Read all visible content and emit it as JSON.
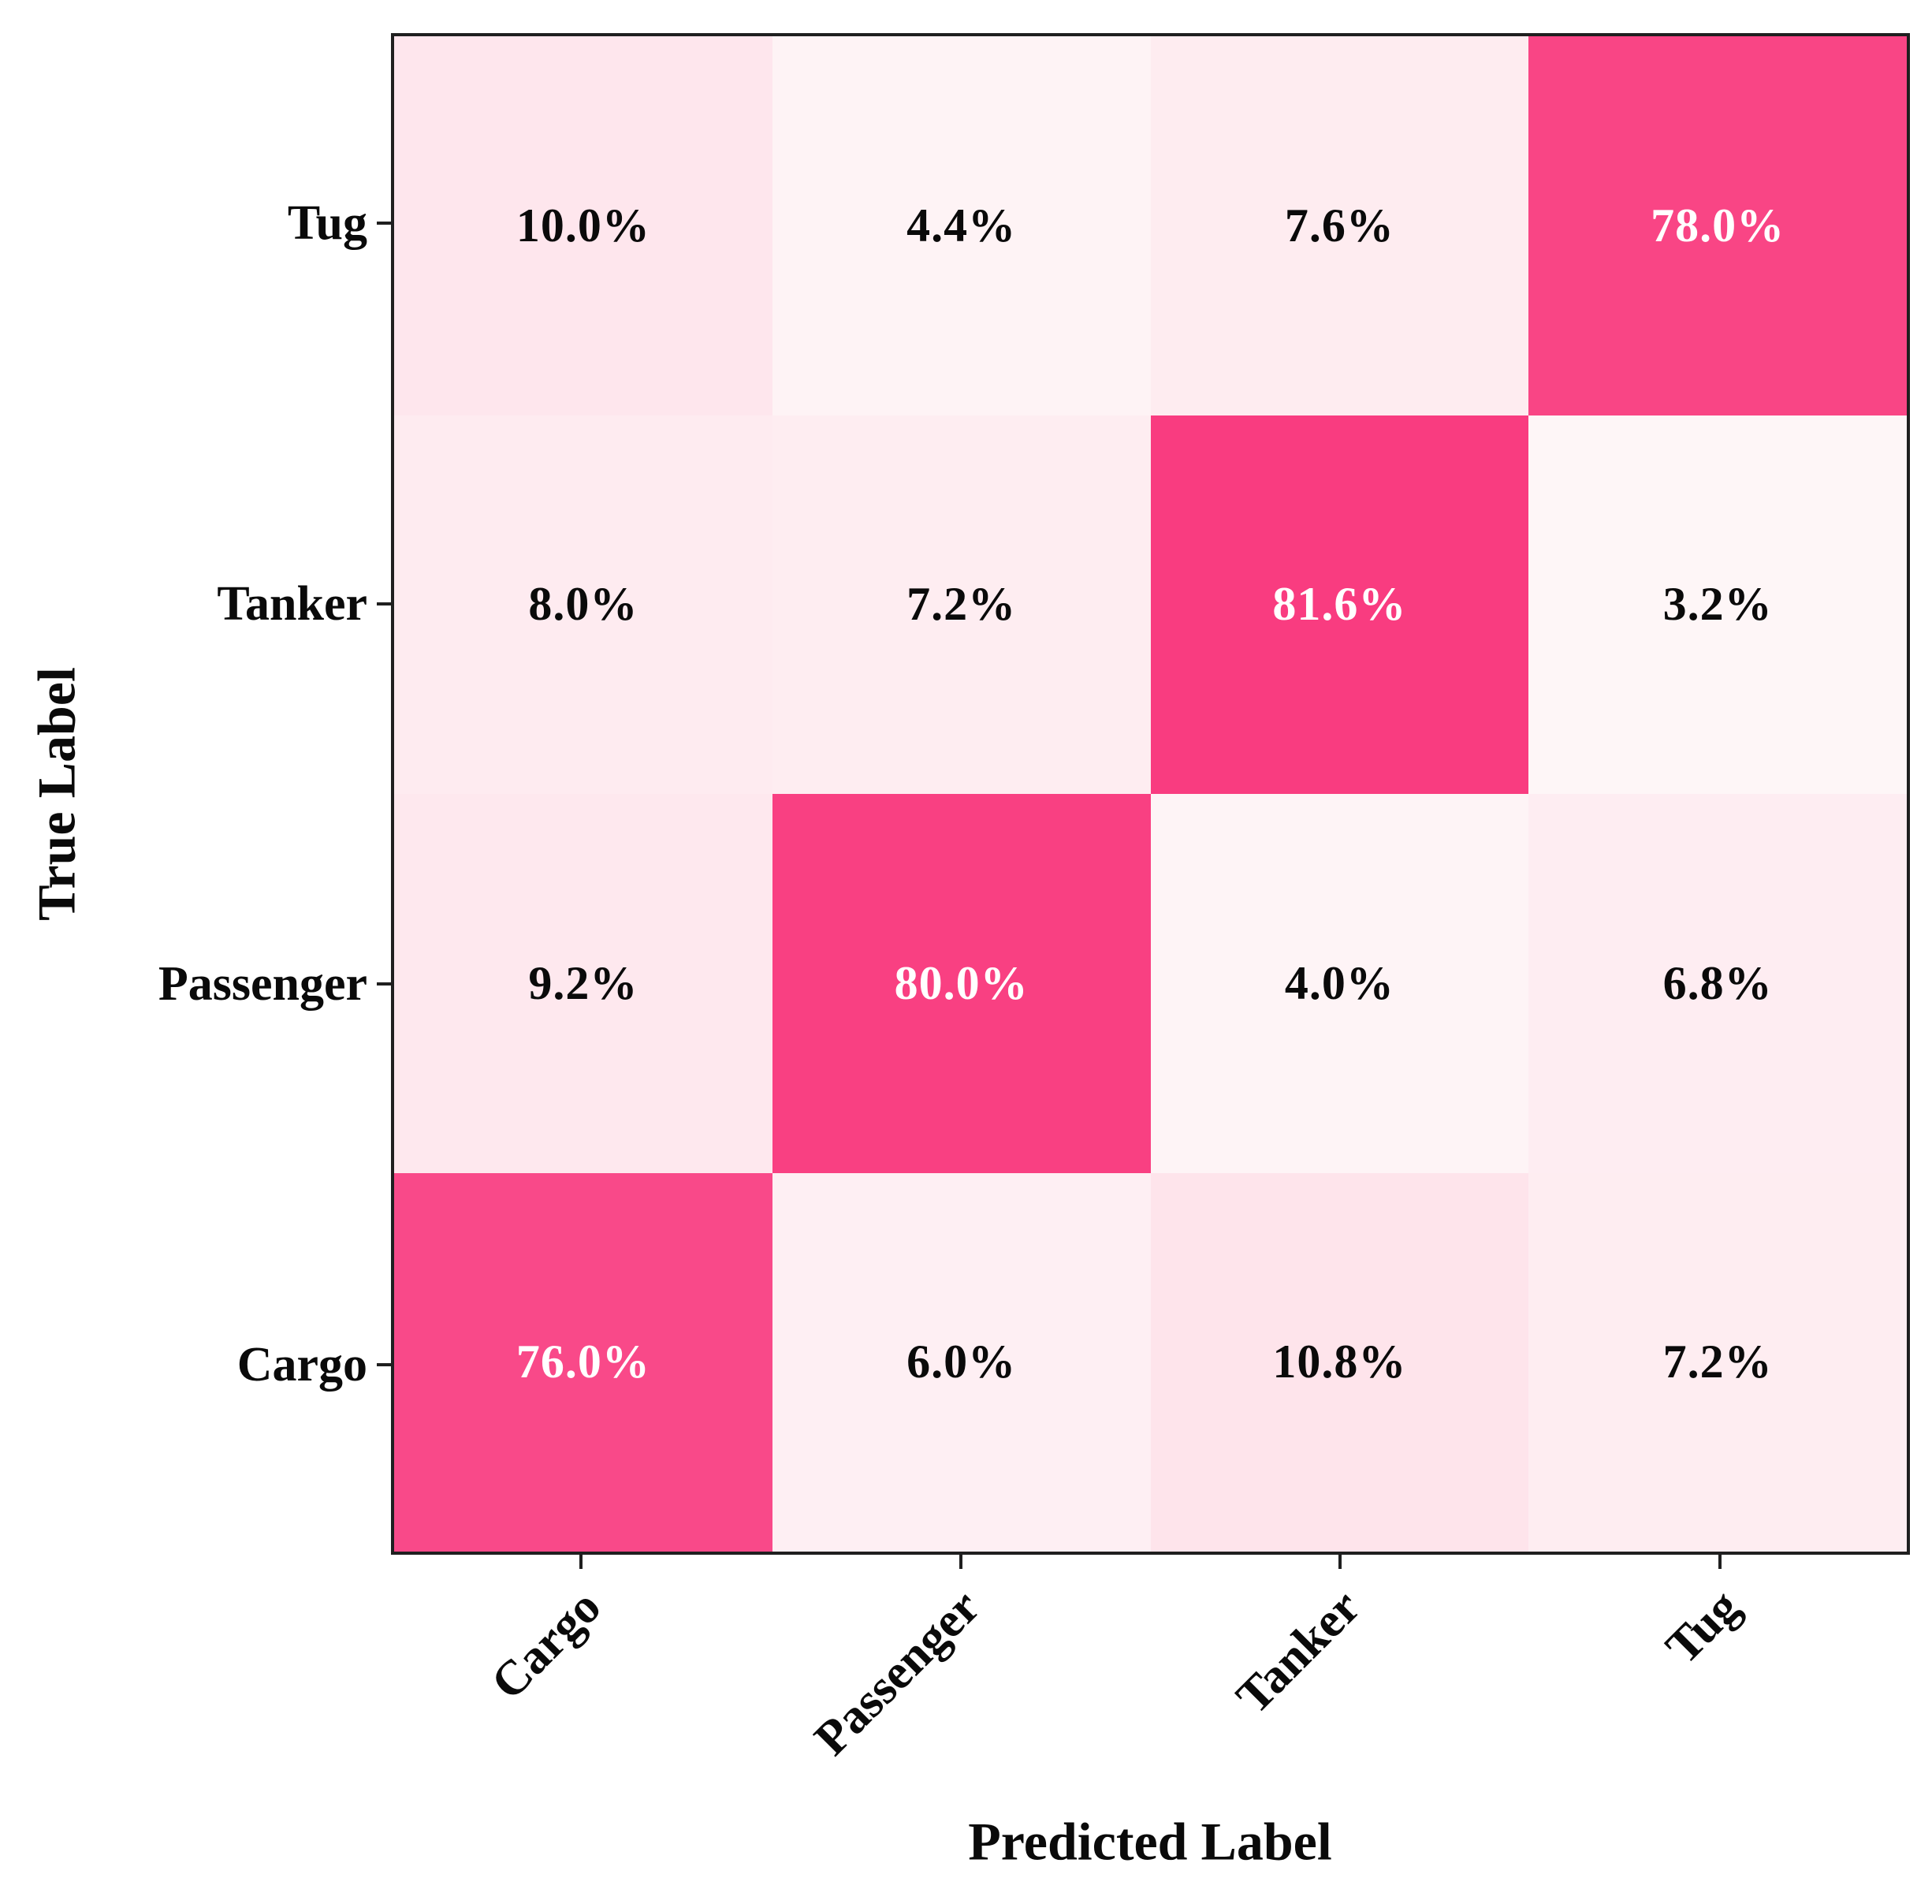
{
  "chart_data": {
    "type": "heatmap",
    "title": "",
    "xlabel": "Predicted Label",
    "ylabel": "True Label",
    "x_categories": [
      "Cargo",
      "Passenger",
      "Tanker",
      "Tug"
    ],
    "y_categories": [
      "Tug",
      "Tanker",
      "Passenger",
      "Cargo"
    ],
    "values_percent": [
      [
        10.0,
        4.4,
        7.6,
        78.0
      ],
      [
        8.0,
        7.2,
        81.6,
        3.2
      ],
      [
        9.2,
        80.0,
        4.0,
        6.8
      ],
      [
        76.0,
        6.0,
        10.8,
        7.2
      ]
    ],
    "cell_labels": [
      [
        "10.0%",
        "4.4%",
        "7.6%",
        "78.0%"
      ],
      [
        "8.0%",
        "7.2%",
        "81.6%",
        "3.2%"
      ],
      [
        "9.2%",
        "80.0%",
        "4.0%",
        "6.8%"
      ],
      [
        "76.0%",
        "6.0%",
        "10.8%",
        "7.2%"
      ]
    ],
    "colormap": {
      "low_color": "#FEF6F7",
      "high_color": "#F93C80",
      "vmin": 3.2,
      "vmax": 81.6
    },
    "colors": {
      "cell_text_dark": "#0a0a0a",
      "cell_text_light": "#ffffff",
      "spine": "#1f1f1f"
    },
    "legend": "none",
    "grid": false
  }
}
